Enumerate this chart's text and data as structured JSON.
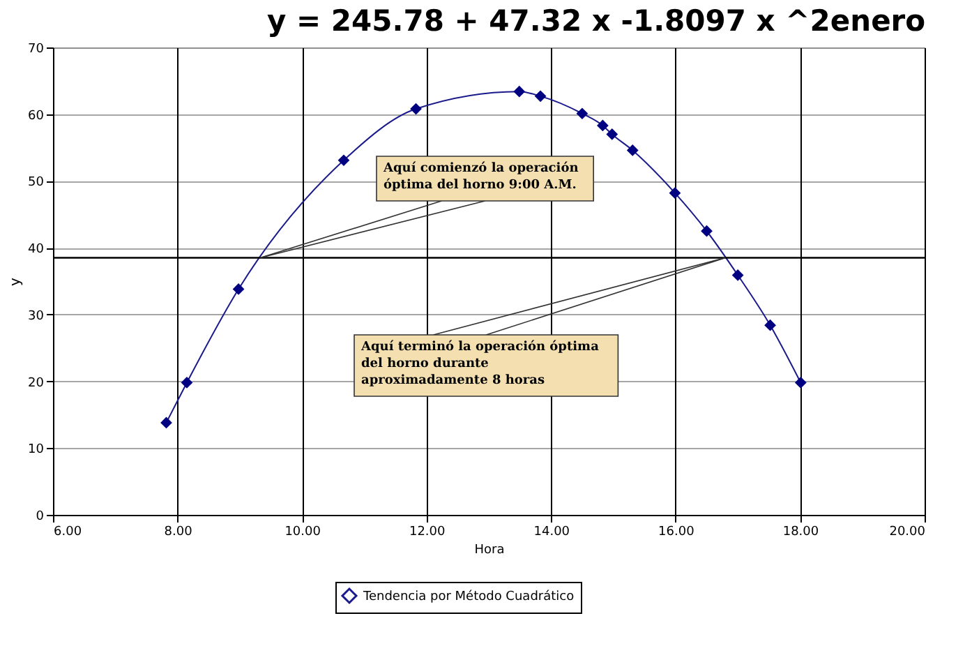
{
  "chart_data": {
    "type": "line",
    "title": "y = 245.78 + 47.32 x -1.8097 x ^2enero",
    "xlabel": "Hora",
    "ylabel": "y",
    "series": [
      {
        "name": "Tendencia por Método Cuadrático",
        "color": "#1a1a8c",
        "x": [
          7.82,
          8.15,
          8.98,
          10.67,
          11.83,
          13.49,
          13.83,
          14.5,
          14.83,
          14.98,
          15.31,
          15.99,
          16.5,
          17.0,
          17.52,
          18.01
        ],
        "values": [
          13.8,
          19.8,
          33.8,
          53.1,
          60.8,
          63.4,
          62.7,
          60.1,
          58.3,
          57.0,
          54.6,
          48.2,
          42.5,
          35.9,
          28.4,
          19.8
        ]
      }
    ],
    "xlim": [
      6,
      20
    ],
    "xticks": [
      {
        "value": 6,
        "label": "6.00"
      },
      {
        "value": 8,
        "label": "8.00"
      },
      {
        "value": 10,
        "label": "10.00"
      },
      {
        "value": 12,
        "label": "12.00"
      },
      {
        "value": 14,
        "label": "14.00"
      },
      {
        "value": 16,
        "label": "16.00"
      },
      {
        "value": 18,
        "label": "18.00"
      },
      {
        "value": 20,
        "label": "20.00"
      }
    ],
    "ylim": [
      0,
      70
    ],
    "yticks": [
      0,
      10,
      20,
      30,
      40,
      50,
      60,
      70
    ],
    "ref_lines": [
      {
        "axis": "y",
        "value": 38.5,
        "color": "#000000"
      }
    ],
    "annotations": [
      {
        "text": "Aquí comienzó la operación\nóptima del horno 9:00 A.M.",
        "x": 9.33,
        "y": 38.5
      },
      {
        "text": "Aquí terminó la operación óptima\ndel horno durante\naproximadamente 8 horas",
        "x": 16.8,
        "y": 38.5
      }
    ],
    "grid": true,
    "legend": "bottom",
    "marker": "diamond",
    "line_style": "solid"
  }
}
